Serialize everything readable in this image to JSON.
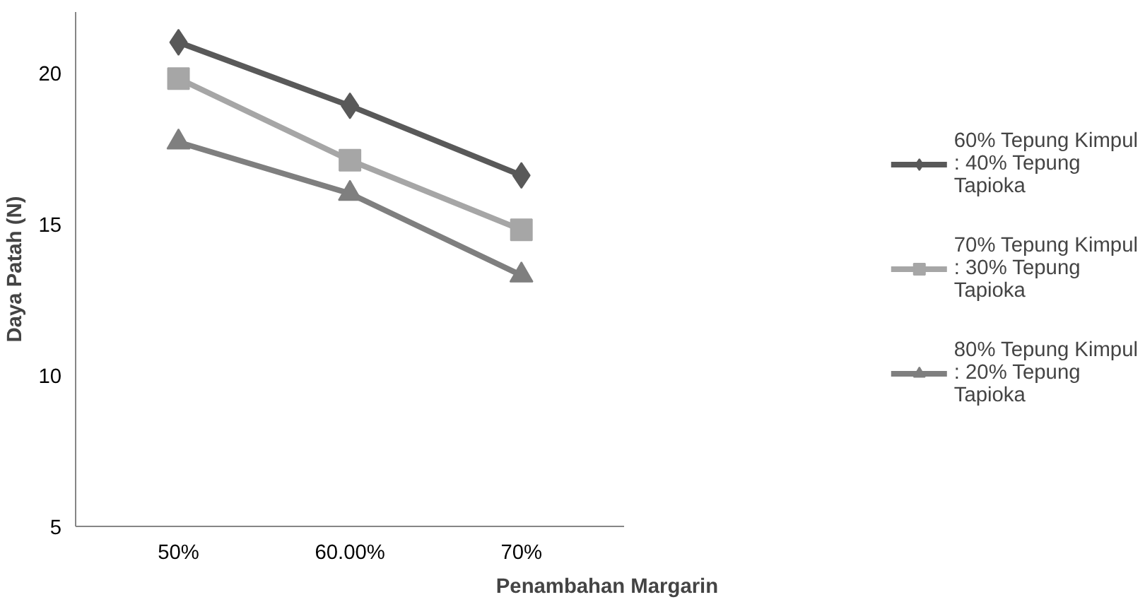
{
  "chart_data": {
    "type": "line",
    "xlabel": "Penambahan Margarin",
    "ylabel": "Daya Patah (N)",
    "categories": [
      "50%",
      "60.00%",
      "70%"
    ],
    "series": [
      {
        "name": "60% Tepung Kimpul : 40% Tepung Tapioka",
        "color": "#595959",
        "marker": "diamond",
        "values": [
          21.0,
          18.9,
          16.6
        ]
      },
      {
        "name": "70% Tepung Kimpul : 30% Tepung Tapioka",
        "color": "#a6a6a6",
        "marker": "square",
        "values": [
          19.8,
          17.1,
          14.8
        ]
      },
      {
        "name": "80% Tepung Kimpul : 20% Tepung Tapioka",
        "color": "#7f7f7f",
        "marker": "triangle",
        "values": [
          17.7,
          16.0,
          13.3
        ]
      }
    ],
    "ylim": [
      5,
      22
    ],
    "yticks": [
      5,
      10,
      15,
      20
    ],
    "grid": false,
    "legend": "right"
  }
}
